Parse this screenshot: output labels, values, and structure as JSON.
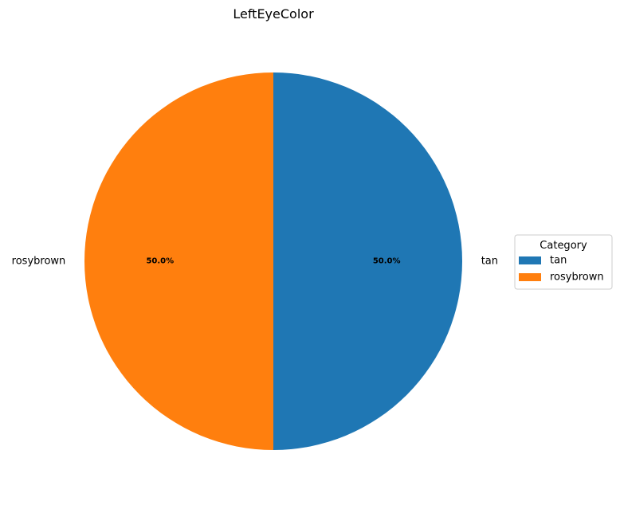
{
  "chart_data": {
    "type": "pie",
    "title": "LeftEyeColor",
    "categories": [
      "tan",
      "rosybrown"
    ],
    "values": [
      50.0,
      50.0
    ],
    "percent_labels": [
      "50.0%",
      "50.0%"
    ],
    "colors": [
      "#1f77b4",
      "#ff7f0e"
    ],
    "start_angle_deg": 90,
    "direction": "clockwise",
    "legend": {
      "title": "Category",
      "placement": "center-right",
      "entries": [
        "tan",
        "rosybrown"
      ]
    }
  }
}
